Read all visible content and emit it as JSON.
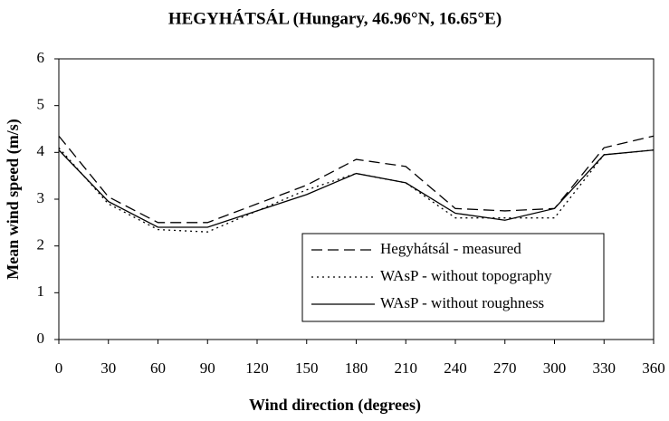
{
  "chart_data": {
    "type": "line",
    "title": "HEGYHÁTSÁL (Hungary, 46.96°N, 16.65°E)",
    "x_label": "Wind direction (degrees)",
    "y_label": "Mean wind speed (m/s)",
    "x": [
      0,
      30,
      60,
      90,
      120,
      150,
      180,
      210,
      240,
      270,
      300,
      330,
      360
    ],
    "series": [
      {
        "name": "Hegyhátsál - measured",
        "color": "#000000",
        "style": "dashed",
        "values": [
          4.35,
          3.05,
          2.5,
          2.5,
          2.9,
          3.3,
          3.85,
          3.7,
          2.8,
          2.75,
          2.8,
          4.1,
          4.35
        ]
      },
      {
        "name": "WAsP - without topography",
        "color": "#000000",
        "style": "dotted",
        "values": [
          4.1,
          2.9,
          2.35,
          2.3,
          2.75,
          3.2,
          3.55,
          3.35,
          2.6,
          2.6,
          2.6,
          3.95,
          4.05
        ]
      },
      {
        "name": "WAsP - without roughness",
        "color": "#000000",
        "style": "solid",
        "values": [
          4.05,
          2.95,
          2.4,
          2.4,
          2.75,
          3.1,
          3.55,
          3.35,
          2.7,
          2.55,
          2.8,
          3.95,
          4.05
        ]
      }
    ],
    "xlim": [
      0,
      360
    ],
    "xticks": [
      0,
      30,
      60,
      90,
      120,
      150,
      180,
      210,
      240,
      270,
      300,
      330,
      360
    ],
    "ylim": [
      0,
      6
    ],
    "yticks": [
      0,
      1,
      2,
      3,
      4,
      5,
      6
    ],
    "grid": false,
    "legend": "lower right"
  }
}
